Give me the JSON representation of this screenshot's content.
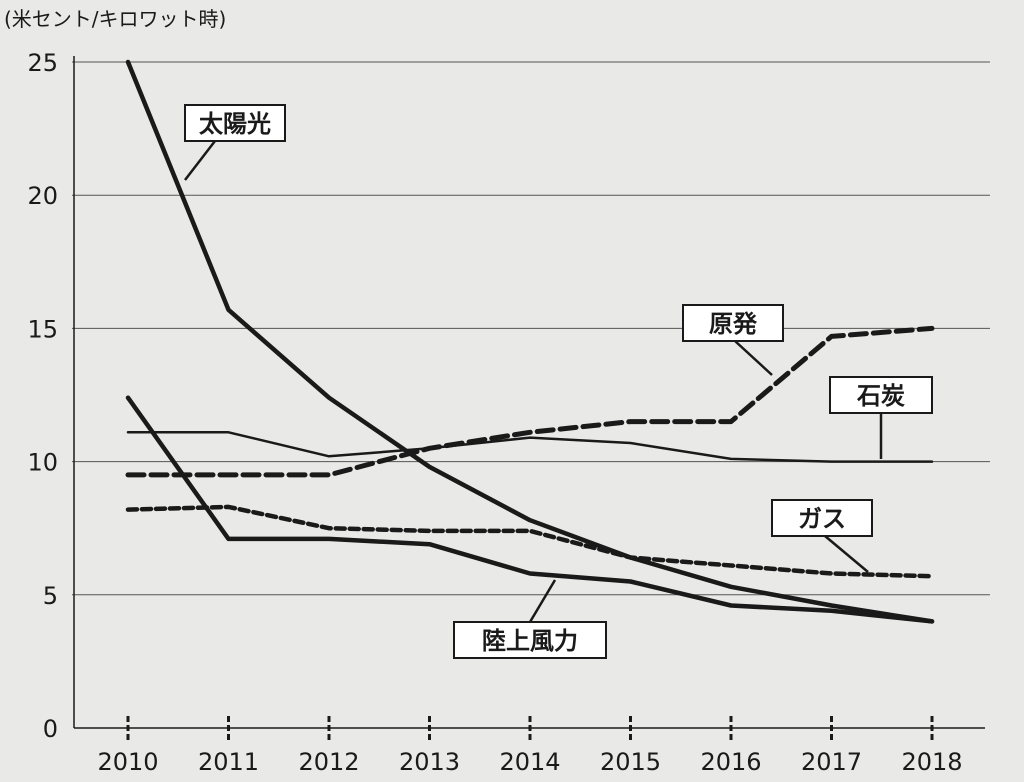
{
  "chart_data": {
    "type": "line",
    "unit_label": "(米セント/キロワット時)",
    "x": [
      2010,
      2011,
      2012,
      2013,
      2014,
      2015,
      2016,
      2017,
      2018
    ],
    "ylim": [
      0,
      25
    ],
    "yticks": [
      0,
      5,
      10,
      15,
      20,
      25
    ],
    "grid": true,
    "series": [
      {
        "name": "太陽光",
        "style": "solid-thick",
        "values": [
          25,
          15.7,
          12.4,
          9.8,
          7.8,
          6.4,
          5.3,
          4.6,
          4.0
        ]
      },
      {
        "name": "原発",
        "style": "dashed-thick",
        "values": [
          9.5,
          9.5,
          9.5,
          10.5,
          11.1,
          11.5,
          11.5,
          14.7,
          15.0
        ]
      },
      {
        "name": "石炭",
        "style": "solid-thin",
        "values": [
          11.1,
          11.1,
          10.2,
          10.5,
          10.9,
          10.7,
          10.1,
          10.0,
          10.0
        ]
      },
      {
        "name": "ガス",
        "style": "dashed-medium",
        "values": [
          8.2,
          8.3,
          7.5,
          7.4,
          7.4,
          6.4,
          6.1,
          5.8,
          5.7
        ]
      },
      {
        "name": "陸上風力",
        "style": "solid-thick",
        "values": [
          12.4,
          7.1,
          7.1,
          6.9,
          5.8,
          5.5,
          4.6,
          4.4,
          4.0
        ]
      }
    ]
  },
  "colors": {
    "background": "#e9e9e7",
    "ink": "#1a1a1a",
    "grid": "#555555",
    "label_box": "#ffffff"
  }
}
